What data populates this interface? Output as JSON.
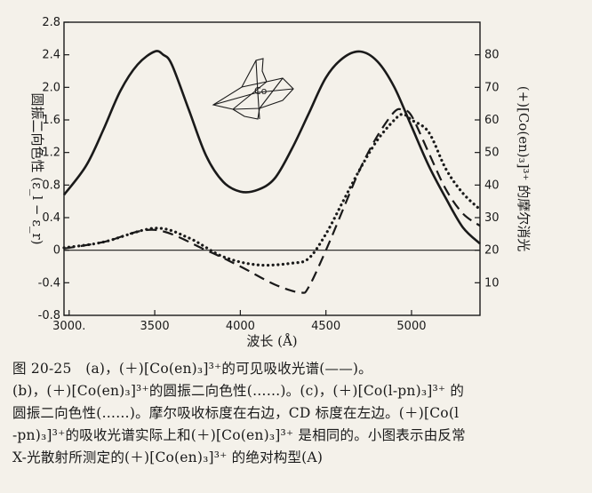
{
  "chart_data": {
    "type": "line",
    "xlabel": "波长 (Å)",
    "ylabel_left": "圆振二向色性 (ε_l − ε_r)",
    "ylabel_right": "(+)[Co(en)₃]³⁺ 的摩尔消光",
    "xlim": [
      2970,
      5400
    ],
    "ylim_left": [
      -0.8,
      2.8
    ],
    "ylim_right": [
      0,
      90
    ],
    "x_ticks": [
      3000,
      3500,
      4000,
      4500,
      5000
    ],
    "x_tick_labels": [
      "3000.",
      "3500",
      "4000",
      "4500",
      "5000"
    ],
    "y_left_ticks": [
      -0.8,
      -0.4,
      0,
      0.4,
      0.8,
      1.2,
      1.6,
      2.0,
      2.4,
      2.8
    ],
    "y_left_tick_labels": [
      "-0.8",
      "-0.4",
      "0",
      "0.4",
      "0.8",
      "1.2",
      "1.6",
      "2.0",
      "2.4",
      "2.8"
    ],
    "y_right_ticks": [
      10,
      20,
      30,
      40,
      50,
      60,
      70,
      80
    ],
    "y_right_tick_labels": [
      "10",
      "20",
      "30",
      "40",
      "50",
      "60",
      "70",
      "80"
    ],
    "inset_label": "Co",
    "series": [
      {
        "style": "solid",
        "axis": "right",
        "x": [
          2970,
          3100,
          3200,
          3300,
          3400,
          3500,
          3550,
          3600,
          3700,
          3800,
          3900,
          4000,
          4100,
          4200,
          4300,
          4400,
          4500,
          4600,
          4700,
          4800,
          4900,
          5000,
          5100,
          5200,
          5300,
          5400
        ],
        "y": [
          37,
          46,
          57,
          69,
          77,
          81,
          80,
          77,
          63,
          49,
          41,
          38,
          38.5,
          42,
          51,
          62,
          73,
          79,
          81,
          78,
          70,
          58,
          46,
          36,
          27,
          22
        ]
      },
      {
        "style": "dashed",
        "axis": "left",
        "x": [
          2970,
          3200,
          3500,
          3800,
          4000,
          4200,
          4350,
          4400,
          4500,
          4600,
          4700,
          4800,
          4900,
          4950,
          5000,
          5100,
          5200,
          5300,
          5400
        ],
        "y": [
          0.02,
          0.1,
          0.25,
          0.0,
          -0.2,
          -0.42,
          -0.52,
          -0.45,
          0.0,
          0.5,
          1.0,
          1.4,
          1.7,
          1.72,
          1.65,
          1.2,
          0.75,
          0.45,
          0.3
        ]
      },
      {
        "style": "dotted",
        "axis": "left",
        "x": [
          2970,
          3200,
          3500,
          3700,
          3900,
          4100,
          4300,
          4400,
          4500,
          4600,
          4700,
          4800,
          4900,
          4950,
          5000,
          5100,
          5200,
          5300,
          5400
        ],
        "y": [
          0.03,
          0.1,
          0.27,
          0.15,
          -0.08,
          -0.18,
          -0.16,
          -0.1,
          0.2,
          0.6,
          1.0,
          1.35,
          1.6,
          1.67,
          1.6,
          1.45,
          1.0,
          0.7,
          0.5
        ]
      }
    ]
  },
  "caption": {
    "lines": [
      "图 20-25　(a)，(＋)[Co(en)₃]³⁺的可见吸收光谱(——)。",
      "(b)，(＋)[Co(en)₃]³⁺的圆振二向色性(……)。(c)，(＋)[Co(l-pn)₃]³⁺ 的",
      "圆振二向色性(……)。摩尔吸收标度在右边，CD 标度在左边。(＋)[Co(l",
      "-pn)₃]³⁺的吸收光谱实际上和(＋)[Co(en)₃]³⁺ 是相同的。小图表示由反常",
      "X-光散射所测定的(＋)[Co(en)₃]³⁺ 的绝对构型(A)"
    ]
  }
}
